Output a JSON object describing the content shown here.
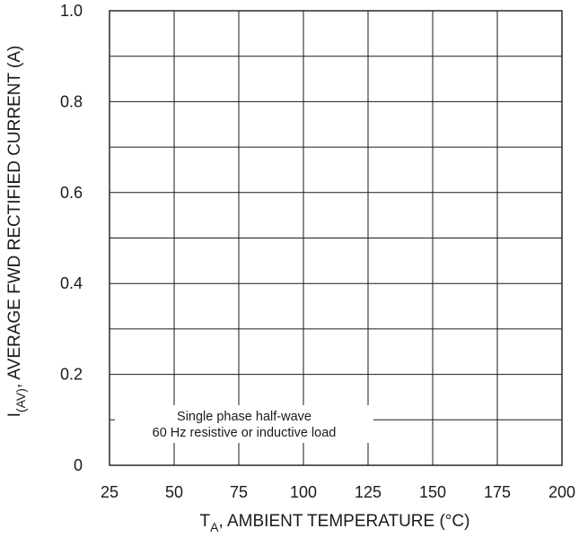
{
  "chart_data": {
    "type": "line",
    "title": "",
    "xlabel_main": "T",
    "xlabel_sub": "A",
    "xlabel_rest": ", AMBIENT TEMPERATURE (°C)",
    "ylabel_main": "I",
    "ylabel_sub": "(AV)",
    "ylabel_rest": ", AVERAGE FWD RECTIFIED CURRENT (A)",
    "xlim": [
      25,
      200
    ],
    "ylim": [
      0,
      1.0
    ],
    "x_ticks": [
      25,
      50,
      75,
      100,
      125,
      150,
      175,
      200
    ],
    "x_tick_labels": [
      "25",
      "50",
      "75",
      "100",
      "125",
      "150",
      "175",
      "200"
    ],
    "y_ticks": [
      0,
      0.2,
      0.4,
      0.6,
      0.8,
      1.0
    ],
    "y_tick_labels": [
      "0",
      "0.2",
      "0.4",
      "0.6",
      "0.8",
      "1.0"
    ],
    "x_grid": [
      25,
      50,
      75,
      100,
      125,
      150,
      175,
      200
    ],
    "y_grid": [
      0,
      0.1,
      0.2,
      0.3,
      0.4,
      0.5,
      0.6,
      0.7,
      0.8,
      0.9,
      1.0
    ],
    "grid": true,
    "series": [],
    "annotation": {
      "lines": [
        "Single phase half-wave",
        "60 Hz resistive or inductive load"
      ],
      "position": "bottom-left"
    }
  }
}
